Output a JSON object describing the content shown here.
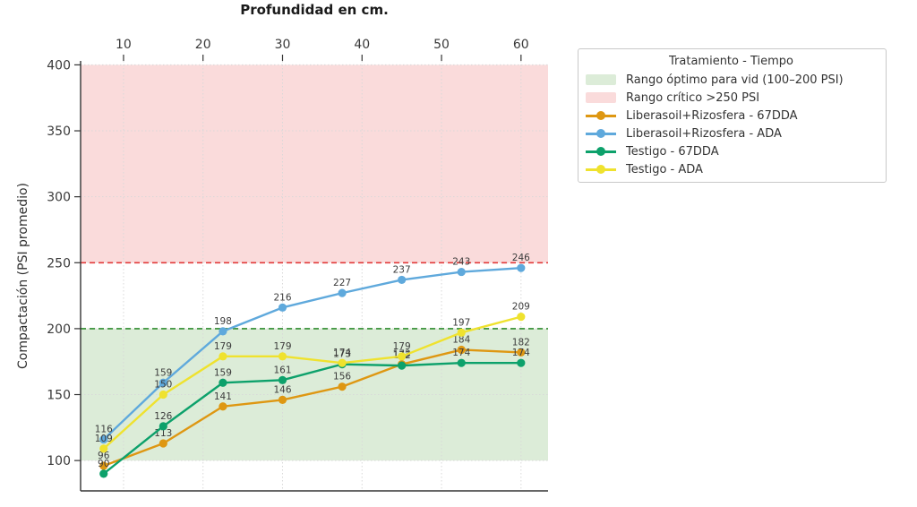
{
  "title": "Profundidad en cm.",
  "ylabel": "Compactación (PSI promedio)",
  "legend": {
    "title": "Tratamiento - Tiempo",
    "items": [
      {
        "type": "patch",
        "color": "#dcecd8",
        "label": "Rango óptimo para vid (100–200 PSI)"
      },
      {
        "type": "patch",
        "color": "#fadbdb",
        "label": "Rango crítico >250 PSI"
      },
      {
        "type": "line",
        "color": "#de9712",
        "label": "Liberasoil+Rizosfera - 67DDA"
      },
      {
        "type": "line",
        "color": "#5fa9dc",
        "label": "Liberasoil+Rizosfera - ADA"
      },
      {
        "type": "line",
        "color": "#0da16b",
        "label": "Testigo - 67DDA"
      },
      {
        "type": "line",
        "color": "#efe22e",
        "label": "Testigo - ADA"
      }
    ]
  },
  "chart_data": {
    "type": "line",
    "title": "Profundidad en cm.",
    "xlabel": "Profundidad en cm.",
    "ylabel": "Compactación (PSI promedio)",
    "x": [
      7.5,
      15,
      22.5,
      30,
      37.5,
      45,
      52.5,
      60
    ],
    "series": [
      {
        "name": "Liberasoil+Rizosfera - 67DDA",
        "color": "#de9712",
        "values": [
          96,
          113,
          141,
          146,
          156,
          173,
          184,
          182
        ]
      },
      {
        "name": "Liberasoil+Rizosfera - ADA",
        "color": "#5fa9dc",
        "values": [
          116,
          159,
          198,
          216,
          227,
          237,
          243,
          246
        ]
      },
      {
        "name": "Testigo - 67DDA",
        "color": "#0da16b",
        "values": [
          90,
          126,
          159,
          161,
          173,
          172,
          174,
          174
        ]
      },
      {
        "name": "Testigo - ADA",
        "color": "#efe22e",
        "values": [
          109,
          150,
          179,
          179,
          174,
          179,
          197,
          209
        ]
      }
    ],
    "xticks": [
      10,
      20,
      30,
      40,
      50,
      60
    ],
    "yticks": [
      100,
      150,
      200,
      250,
      300,
      350,
      400
    ],
    "xlim": [
      4.6,
      63.4
    ],
    "ylim": [
      77,
      403
    ],
    "bands": [
      {
        "from": 100,
        "to": 200,
        "color": "#dcecd8",
        "name": "rango-optimo"
      },
      {
        "from": 250,
        "to": 400,
        "color": "#fadbdb",
        "name": "rango-critico"
      }
    ],
    "hlines": [
      {
        "y": 200,
        "color": "#2e8b2e"
      },
      {
        "y": 250,
        "color": "#e23b3b"
      }
    ],
    "grid": true,
    "legend_position": "outside-right",
    "point_label_color": "#3c3c3c",
    "tick_label_color": "#3a3a3a",
    "grid_color": "#d9d9d9",
    "spine_color": "#333333"
  }
}
